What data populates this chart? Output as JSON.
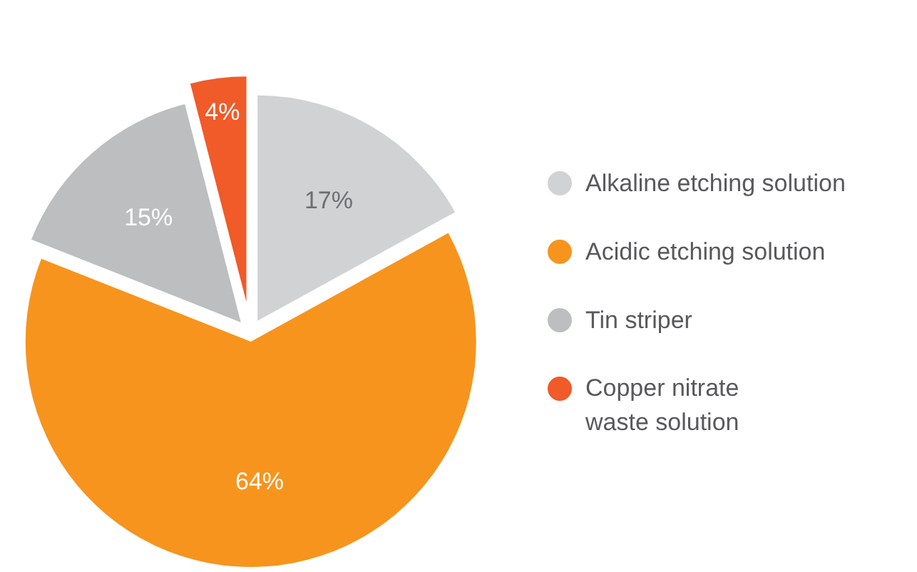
{
  "chart_data": {
    "type": "pie",
    "categories": [
      "Alkaline etching solution",
      "Acidic etching solution",
      "Tin striper",
      "Copper nitrate waste solution"
    ],
    "values": [
      17,
      64,
      15,
      4
    ],
    "colors": [
      "#d1d2d4",
      "#f7941d",
      "#bcbec0",
      "#f15a29"
    ],
    "value_labels": [
      "17%",
      "64%",
      "15%",
      "4%"
    ],
    "legend": "right"
  }
}
